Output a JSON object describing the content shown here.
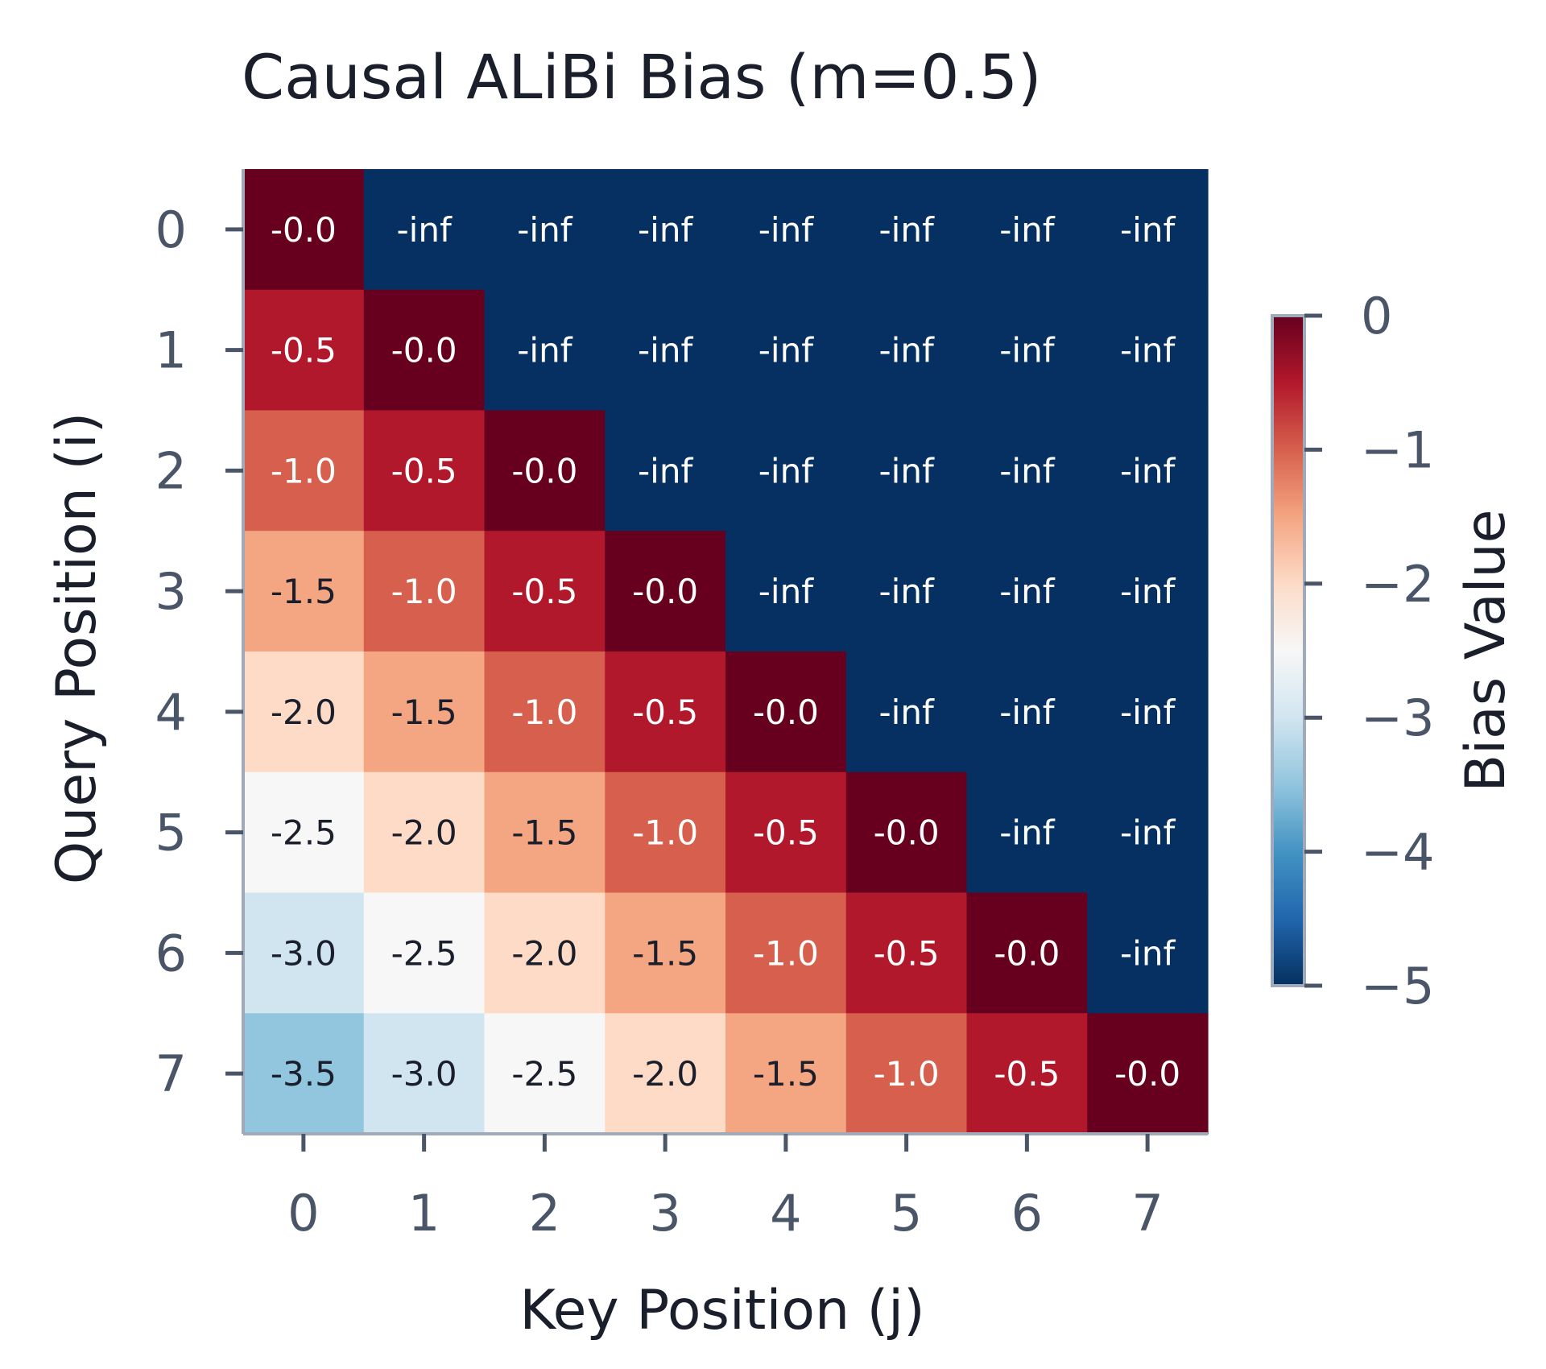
{
  "chart_data": {
    "type": "heatmap",
    "title": "Causal ALiBi Bias (m=0.5)",
    "xlabel": "Key Position (j)",
    "ylabel": "Query Position (i)",
    "x_ticks": [
      "0",
      "1",
      "2",
      "3",
      "4",
      "5",
      "6",
      "7"
    ],
    "y_ticks": [
      "0",
      "1",
      "2",
      "3",
      "4",
      "5",
      "6",
      "7"
    ],
    "colorbar": {
      "label": "Bias Value",
      "range": [
        -5,
        0
      ],
      "ticks": [
        "0",
        "−1",
        "−2",
        "−3",
        "−4",
        "−5"
      ],
      "colormap": "RdBu_r"
    },
    "cell_text": [
      [
        "-0.0",
        "-inf",
        "-inf",
        "-inf",
        "-inf",
        "-inf",
        "-inf",
        "-inf"
      ],
      [
        "-0.5",
        "-0.0",
        "-inf",
        "-inf",
        "-inf",
        "-inf",
        "-inf",
        "-inf"
      ],
      [
        "-1.0",
        "-0.5",
        "-0.0",
        "-inf",
        "-inf",
        "-inf",
        "-inf",
        "-inf"
      ],
      [
        "-1.5",
        "-1.0",
        "-0.5",
        "-0.0",
        "-inf",
        "-inf",
        "-inf",
        "-inf"
      ],
      [
        "-2.0",
        "-1.5",
        "-1.0",
        "-0.5",
        "-0.0",
        "-inf",
        "-inf",
        "-inf"
      ],
      [
        "-2.5",
        "-2.0",
        "-1.5",
        "-1.0",
        "-0.5",
        "-0.0",
        "-inf",
        "-inf"
      ],
      [
        "-3.0",
        "-2.5",
        "-2.0",
        "-1.5",
        "-1.0",
        "-0.5",
        "-0.0",
        "-inf"
      ],
      [
        "-3.5",
        "-3.0",
        "-2.5",
        "-2.0",
        "-1.5",
        "-1.0",
        "-0.5",
        "-0.0"
      ]
    ],
    "colors": {
      "axis_spine": "#a0aab8",
      "tick_text": "#4a5568",
      "title_text": "#1a1f2b"
    }
  }
}
